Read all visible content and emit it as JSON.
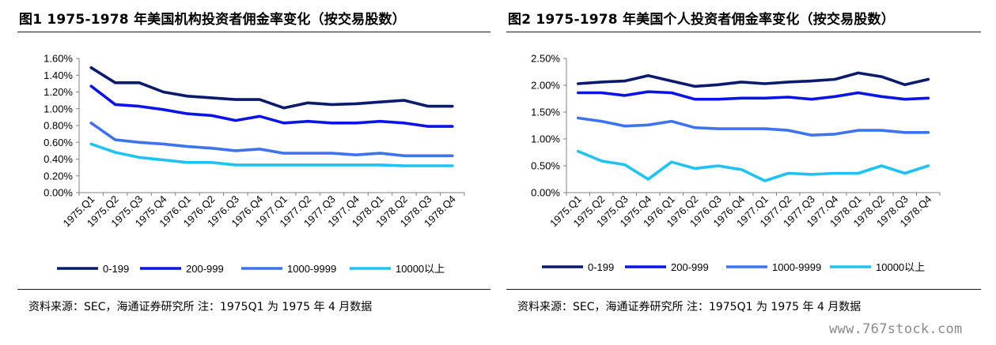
{
  "watermark": "www.767stock.com",
  "panels": [
    {
      "title": "图1  1975-1978 年美国机构投资者佣金率变化（按交易股数）",
      "source": "资料来源：SEC，海通证券研究所 注：1975Q1 为 1975 年 4 月数据"
    },
    {
      "title": "图2  1975-1978 年美国个人投资者佣金率变化（按交易股数）",
      "source": "资料来源：SEC，海通证券研究所 注：1975Q1 为 1975 年 4 月数据"
    }
  ],
  "chart_data": [
    {
      "type": "line",
      "title": "",
      "xlabel": "",
      "ylabel": "",
      "categories": [
        "1975.Q1",
        "1975.Q2",
        "1975.Q3",
        "1975.Q4",
        "1976.Q1",
        "1976.Q2",
        "1976.Q3",
        "1976.Q4",
        "1977.Q1",
        "1977.Q2",
        "1977.Q3",
        "1977.Q4",
        "1978.Q1",
        "1978.Q2",
        "1978.Q3",
        "1978.Q4"
      ],
      "ylim": [
        0,
        0.016
      ],
      "yticks": [
        "0.00%",
        "0.20%",
        "0.40%",
        "0.60%",
        "0.80%",
        "1.00%",
        "1.20%",
        "1.40%",
        "1.60%"
      ],
      "legend_position": "bottom",
      "grid": false,
      "series": [
        {
          "name": "0-199",
          "color": "#0a1a6e",
          "values": [
            0.0149,
            0.0131,
            0.0131,
            0.012,
            0.0115,
            0.0113,
            0.0111,
            0.0111,
            0.0101,
            0.0107,
            0.0105,
            0.0106,
            0.0108,
            0.011,
            0.0103,
            0.0103
          ]
        },
        {
          "name": "200-999",
          "color": "#0b14e6",
          "values": [
            0.0127,
            0.0105,
            0.0103,
            0.0099,
            0.0094,
            0.0092,
            0.0086,
            0.0091,
            0.0083,
            0.0085,
            0.0083,
            0.0083,
            0.0085,
            0.0083,
            0.0079,
            0.0079
          ]
        },
        {
          "name": "1000-9999",
          "color": "#3d74ee",
          "values": [
            0.0083,
            0.0063,
            0.006,
            0.0058,
            0.0055,
            0.0053,
            0.005,
            0.0052,
            0.0047,
            0.0047,
            0.0047,
            0.0045,
            0.0047,
            0.0044,
            0.0044,
            0.0044
          ]
        },
        {
          "name": "10000以上",
          "color": "#1ec3f3",
          "values": [
            0.0058,
            0.0048,
            0.0042,
            0.0039,
            0.0036,
            0.0036,
            0.0033,
            0.0033,
            0.0033,
            0.0033,
            0.0033,
            0.0033,
            0.0033,
            0.0032,
            0.0032,
            0.0032
          ]
        }
      ]
    },
    {
      "type": "line",
      "title": "",
      "xlabel": "",
      "ylabel": "",
      "categories": [
        "1975.Q1",
        "1975.Q2",
        "1975.Q3",
        "1975.Q4",
        "1976.Q1",
        "1976.Q2",
        "1976.Q3",
        "1976.Q4",
        "1977.Q1",
        "1977.Q2",
        "1977.Q3",
        "1977.Q4",
        "1978.Q1",
        "1978.Q2",
        "1978.Q3",
        "1978.Q4"
      ],
      "ylim": [
        0,
        0.025
      ],
      "yticks": [
        "0.00%",
        "0.50%",
        "1.00%",
        "1.50%",
        "2.00%",
        "2.50%"
      ],
      "legend_position": "bottom",
      "grid": false,
      "series": [
        {
          "name": "0-199",
          "color": "#0a1a6e",
          "values": [
            0.0203,
            0.0206,
            0.0208,
            0.0218,
            0.0208,
            0.0198,
            0.0201,
            0.0206,
            0.0203,
            0.0206,
            0.0208,
            0.0211,
            0.0223,
            0.0216,
            0.0201,
            0.0211
          ]
        },
        {
          "name": "200-999",
          "color": "#0b14e6",
          "values": [
            0.0186,
            0.0186,
            0.0181,
            0.0188,
            0.0186,
            0.0174,
            0.0174,
            0.0176,
            0.0176,
            0.0178,
            0.0174,
            0.0179,
            0.0186,
            0.0179,
            0.0174,
            0.0176
          ]
        },
        {
          "name": "1000-9999",
          "color": "#3d74ee",
          "values": [
            0.0139,
            0.0133,
            0.0124,
            0.0126,
            0.0133,
            0.0121,
            0.0119,
            0.0119,
            0.0119,
            0.0116,
            0.0107,
            0.0109,
            0.0116,
            0.0116,
            0.0112,
            0.0112
          ]
        },
        {
          "name": "10000以上",
          "color": "#1ec3f3",
          "values": [
            0.0077,
            0.0059,
            0.0052,
            0.0025,
            0.0057,
            0.0045,
            0.005,
            0.0043,
            0.0022,
            0.0036,
            0.0034,
            0.0036,
            0.0036,
            0.005,
            0.0036,
            0.005
          ]
        }
      ]
    }
  ]
}
